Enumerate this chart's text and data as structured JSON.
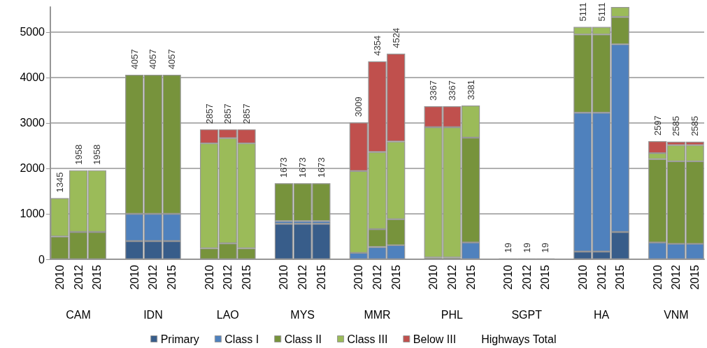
{
  "chart_data": {
    "type": "bar",
    "stacked": true,
    "categories": [
      "2010",
      "2012",
      "2015",
      "2010",
      "2012",
      "2015",
      "2010",
      "2012",
      "2015",
      "2010",
      "2012",
      "2015",
      "2010",
      "2012",
      "2015",
      "2010",
      "2012",
      "2015",
      "2010",
      "2012",
      "2015",
      "2010",
      "2012",
      "2015",
      "2010",
      "2012",
      "2015"
    ],
    "annotations": [
      "CAM",
      "IDN",
      "LAO",
      "MYS",
      "MMR",
      "PHL",
      "SGPT",
      "HA",
      "VNM"
    ],
    "series": [
      {
        "name": "Primary",
        "color": "#385d8a",
        "values": [
          null,
          null,
          null,
          400,
          400,
          400,
          null,
          null,
          null,
          780,
          780,
          780,
          null,
          null,
          null,
          null,
          null,
          null,
          null,
          null,
          null,
          170,
          170,
          600,
          null,
          null,
          null
        ]
      },
      {
        "name": "Class I",
        "color": "#4f81bd",
        "values": [
          null,
          null,
          null,
          600,
          600,
          600,
          null,
          null,
          null,
          60,
          60,
          60,
          140,
          270,
          310,
          null,
          null,
          370,
          null,
          null,
          null,
          3055,
          3055,
          4130,
          370,
          340,
          340
        ]
      },
      {
        "name": "Class II",
        "color": "#77933c",
        "values": [
          500,
          600,
          600,
          3057,
          3057,
          3057,
          240,
          350,
          240,
          833,
          833,
          833,
          null,
          390,
          570,
          40,
          40,
          2305,
          null,
          null,
          null,
          1720,
          1720,
          600,
          1835,
          1815,
          1815
        ]
      },
      {
        "name": "Class III",
        "color": "#9bbb59",
        "values": [
          845,
          1358,
          1358,
          null,
          null,
          null,
          2310,
          2315,
          2310,
          null,
          null,
          null,
          1800,
          1700,
          1710,
          2865,
          2865,
          706,
          19,
          19,
          19,
          166,
          166,
          220,
          130,
          357,
          357
        ]
      },
      {
        "name": "Below III",
        "color": "#c0504d",
        "values": [
          null,
          null,
          null,
          null,
          null,
          null,
          307,
          192,
          307,
          null,
          null,
          null,
          1069,
          1994,
          1934,
          462,
          462,
          null,
          null,
          null,
          null,
          null,
          null,
          null,
          262,
          73,
          73
        ]
      },
      {
        "name": "Highways Total",
        "type": "line",
        "values": [
          null,
          null,
          null,
          null,
          null,
          null,
          null,
          null,
          null,
          null,
          null,
          null,
          null,
          null,
          null,
          null,
          null,
          null,
          null,
          null,
          null,
          null,
          null,
          null,
          null,
          null,
          null
        ]
      }
    ],
    "totals": [
      "1345",
      "1958",
      "1958",
      "4057",
      "4057",
      "4057",
      "2857",
      "2857",
      "2857",
      "1673",
      "1673",
      "1673",
      "3009",
      "4354",
      "4524",
      "3367",
      "3367",
      "3381",
      "19",
      "19",
      "19",
      "5111",
      "5111",
      null,
      "2597",
      "2585",
      "2585"
    ],
    "ylim": [
      0,
      5550
    ],
    "yticks": [
      0,
      1000,
      2000,
      3000,
      4000,
      5000
    ],
    "grid": "y",
    "legend": "bottom"
  }
}
